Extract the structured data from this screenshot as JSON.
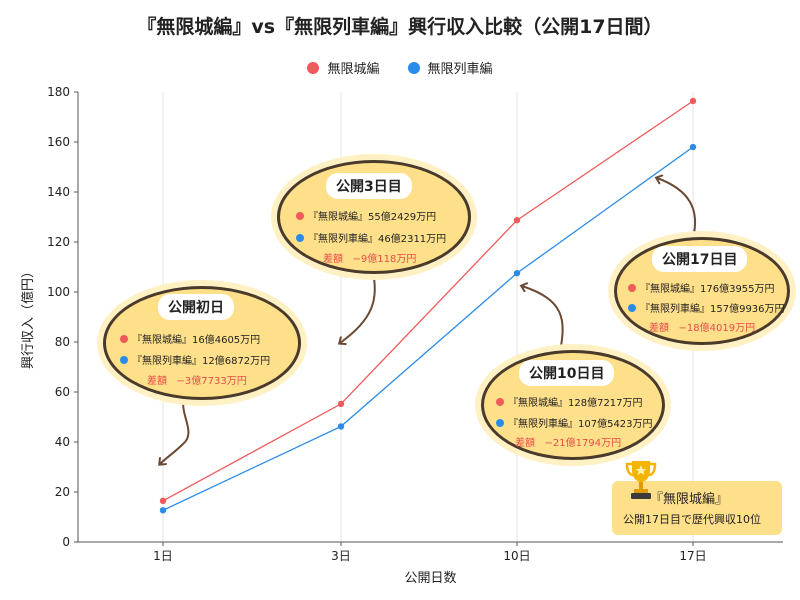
{
  "title": "『無限城編』vs『無限列車編』興行収入比較（公開17日間）",
  "chart_data": {
    "type": "line",
    "title": "『無限城編』vs『無限列車編』興行収入比較（公開17日間）",
    "xlabel": "公開日数",
    "ylabel": "興行収入（億円）",
    "categories": [
      "1日",
      "3日",
      "10日",
      "17日"
    ],
    "ylim": [
      0,
      180
    ],
    "yticks": [
      0,
      20,
      40,
      60,
      80,
      100,
      120,
      140,
      160,
      180
    ],
    "grid": "vertical",
    "legend_position": "top-center",
    "series": [
      {
        "name": "無限城編",
        "color": "#f05a5a",
        "values": [
          16.46,
          55.24,
          128.72,
          176.4
        ]
      },
      {
        "name": "無限列車編",
        "color": "#2a8ce8",
        "values": [
          12.69,
          46.23,
          107.54,
          157.99
        ]
      }
    ]
  },
  "annotations": [
    {
      "title": "公開初日",
      "line1": "『無限城編』16億4605万円",
      "line2": "『無限列車編』12億6872万円",
      "diff_label": "差額",
      "diff_value": "−3億7733万円"
    },
    {
      "title": "公開3日目",
      "line1": "『無限城編』55億2429万円",
      "line2": "『無限列車編』46億2311万円",
      "diff_label": "差額",
      "diff_value": "−9億118万円"
    },
    {
      "title": "公開10日目",
      "line1": "『無限城編』128億7217万円",
      "line2": "『無限列車編』107億5423万円",
      "diff_label": "差額",
      "diff_value": "−21億1794万円"
    },
    {
      "title": "公開17日目",
      "line1": "『無限城編』176億3955万円",
      "line2": "『無限列車編』157億9936万円",
      "diff_label": "差額",
      "diff_value": "−18億4019万円"
    }
  ],
  "trophy": {
    "title": "『無限城編』",
    "subtitle": "公開17日目で歴代興収10位"
  },
  "colors": {
    "red": "#f05a5a",
    "blue": "#2a8ce8",
    "bubble": "#ffe08a",
    "arrow": "#6b4a34"
  }
}
